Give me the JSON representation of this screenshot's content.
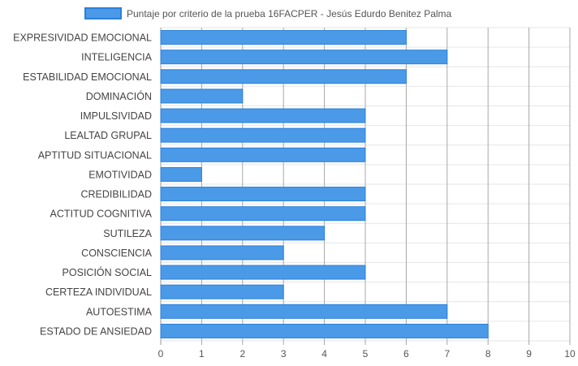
{
  "chart_data": {
    "type": "bar",
    "orientation": "horizontal",
    "categories": [
      "EXPRESIVIDAD EMOCIONAL",
      "INTELIGENCIA",
      "ESTABILIDAD EMOCIONAL",
      "DOMINACIÓN",
      "IMPULSIVIDAD",
      "LEALTAD GRUPAL",
      "APTITUD SITUACIONAL",
      "EMOTIVIDAD",
      "CREDIBILIDAD",
      "ACTITUD COGNITIVA",
      "SUTILEZA",
      "CONSCIENCIA",
      "POSICIÓN SOCIAL",
      "CERTEZA INDIVIDUAL",
      "AUTOESTIMA",
      "ESTADO DE ANSIEDAD"
    ],
    "series": [
      {
        "name": "Puntaje por criterio de la prueba 16FACPER - Jesús Edurdo Benitez Palma",
        "values": [
          6,
          7,
          6,
          2,
          5,
          5,
          5,
          1,
          5,
          5,
          4,
          3,
          5,
          3,
          7,
          8
        ],
        "color": "#4a9ae8",
        "border_color": "#2b80dc"
      }
    ],
    "xlim": [
      0,
      10
    ],
    "x_ticks": [
      "0",
      "1",
      "2",
      "3",
      "4",
      "5",
      "6",
      "7",
      "8",
      "9",
      "10"
    ],
    "title": "",
    "xlabel": "",
    "ylabel": "",
    "grid": true,
    "legend_position": "top-center"
  }
}
